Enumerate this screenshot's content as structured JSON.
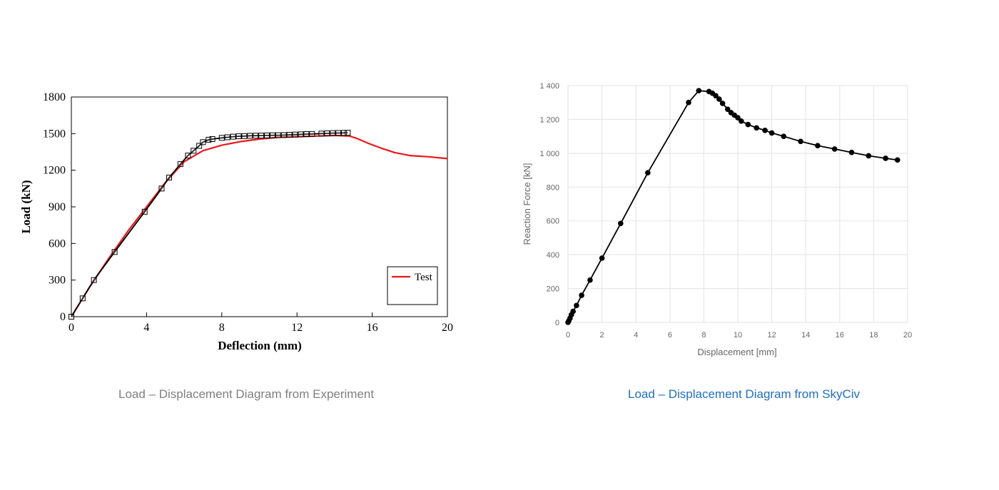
{
  "captions": {
    "left": "Load – Displacement Diagram from Experiment",
    "right": "Load – Displacement Diagram from SkyCiv"
  },
  "colors": {
    "test_line": "#e8171c",
    "model_line": "#000000",
    "caption_left": "#7f7f7f",
    "caption_right": "#1f6fc0"
  },
  "chart_data": [
    {
      "type": "line",
      "title": "",
      "xlabel": "Deflection (mm)",
      "ylabel": "Load (kN)",
      "xlim": [
        0,
        20
      ],
      "ylim": [
        0,
        1800
      ],
      "x_ticks": [
        "0",
        "4",
        "8",
        "12",
        "16",
        "20"
      ],
      "y_ticks": [
        "0",
        "300",
        "600",
        "900",
        "1200",
        "1500",
        "1800"
      ],
      "grid": false,
      "legend": {
        "position": "bottom-right",
        "entries": [
          "Test"
        ]
      },
      "series": [
        {
          "name": "Test",
          "color": "#e8171c",
          "marker": "none",
          "points": [
            [
              0,
              0
            ],
            [
              1,
              250
            ],
            [
              2,
              480
            ],
            [
              3,
              700
            ],
            [
              4,
              900
            ],
            [
              5,
              1100
            ],
            [
              6,
              1270
            ],
            [
              7,
              1360
            ],
            [
              8,
              1405
            ],
            [
              9,
              1435
            ],
            [
              10,
              1455
            ],
            [
              11,
              1470
            ],
            [
              12,
              1475
            ],
            [
              13,
              1480
            ],
            [
              14,
              1485
            ],
            [
              14.8,
              1480
            ],
            [
              15.2,
              1460
            ],
            [
              15.8,
              1420
            ],
            [
              16.5,
              1380
            ],
            [
              17.2,
              1345
            ],
            [
              18,
              1320
            ],
            [
              19,
              1310
            ],
            [
              20,
              1295
            ]
          ]
        },
        {
          "name": "",
          "color": "#000000",
          "marker": "square",
          "points": [
            [
              0,
              0
            ],
            [
              0.6,
              150
            ],
            [
              1.2,
              300
            ],
            [
              2.3,
              530
            ],
            [
              3.9,
              860
            ],
            [
              4.8,
              1050
            ],
            [
              5.2,
              1140
            ],
            [
              5.8,
              1250
            ],
            [
              6.2,
              1320
            ],
            [
              6.5,
              1360
            ],
            [
              6.8,
              1400
            ],
            [
              7.0,
              1430
            ],
            [
              7.3,
              1450
            ],
            [
              7.5,
              1455
            ],
            [
              8.0,
              1465
            ],
            [
              8.3,
              1470
            ],
            [
              8.6,
              1475
            ],
            [
              8.9,
              1478
            ],
            [
              9.2,
              1480
            ],
            [
              9.5,
              1482
            ],
            [
              9.8,
              1483
            ],
            [
              10.1,
              1484
            ],
            [
              10.4,
              1485
            ],
            [
              10.7,
              1486
            ],
            [
              11.0,
              1487
            ],
            [
              11.3,
              1488
            ],
            [
              11.6,
              1490
            ],
            [
              11.9,
              1492
            ],
            [
              12.2,
              1494
            ],
            [
              12.5,
              1496
            ],
            [
              12.8,
              1497
            ],
            [
              13.3,
              1500
            ],
            [
              13.6,
              1502
            ],
            [
              13.9,
              1504
            ],
            [
              14.2,
              1505
            ],
            [
              14.5,
              1506
            ],
            [
              14.7,
              1507
            ]
          ]
        }
      ]
    },
    {
      "type": "line",
      "title": "",
      "xlabel": "Displacement [mm]",
      "ylabel": "Reaction Force [kN]",
      "xlim": [
        0,
        20
      ],
      "ylim": [
        0,
        1400
      ],
      "x_ticks": [
        "0",
        "2",
        "4",
        "6",
        "8",
        "10",
        "12",
        "14",
        "16",
        "18",
        "20"
      ],
      "y_ticks": [
        "0",
        "200",
        "400",
        "600",
        "800",
        "1 000",
        "1 200",
        "1 400"
      ],
      "grid": true,
      "series": [
        {
          "name": "",
          "color": "#000000",
          "marker": "circle",
          "points": [
            [
              0,
              0
            ],
            [
              0.05,
              10
            ],
            [
              0.12,
              25
            ],
            [
              0.2,
              45
            ],
            [
              0.3,
              65
            ],
            [
              0.5,
              100
            ],
            [
              0.8,
              160
            ],
            [
              1.3,
              250
            ],
            [
              2.0,
              380
            ],
            [
              3.1,
              585
            ],
            [
              4.7,
              885
            ],
            [
              7.1,
              1300
            ],
            [
              7.7,
              1370
            ],
            [
              8.3,
              1365
            ],
            [
              8.5,
              1355
            ],
            [
              8.7,
              1340
            ],
            [
              8.9,
              1320
            ],
            [
              9.1,
              1295
            ],
            [
              9.4,
              1260
            ],
            [
              9.6,
              1240
            ],
            [
              9.8,
              1225
            ],
            [
              10.0,
              1210
            ],
            [
              10.2,
              1190
            ],
            [
              10.6,
              1170
            ],
            [
              11.1,
              1150
            ],
            [
              11.6,
              1135
            ],
            [
              12.0,
              1120
            ],
            [
              12.7,
              1100
            ],
            [
              13.7,
              1070
            ],
            [
              14.7,
              1045
            ],
            [
              15.7,
              1025
            ],
            [
              16.7,
              1005
            ],
            [
              17.7,
              985
            ],
            [
              18.7,
              970
            ],
            [
              19.4,
              960
            ]
          ]
        }
      ]
    }
  ]
}
